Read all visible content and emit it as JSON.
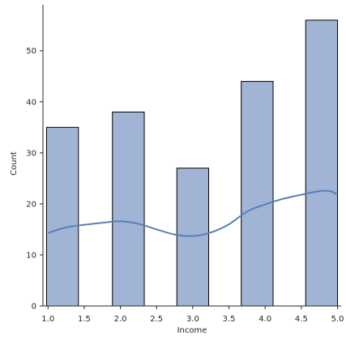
{
  "chart_data": {
    "type": "bar",
    "title": "",
    "xlabel": "Income",
    "ylabel": "Count",
    "bin_width": 0.44,
    "bins": [
      {
        "start": 0.98,
        "end": 1.42,
        "count": 35
      },
      {
        "start": 1.89,
        "end": 2.33,
        "count": 38
      },
      {
        "start": 2.78,
        "end": 3.22,
        "count": 27
      },
      {
        "start": 3.67,
        "end": 4.11,
        "count": 44
      },
      {
        "start": 4.56,
        "end": 5.0,
        "count": 56
      }
    ],
    "kde": {
      "name": "",
      "x": [
        1.0,
        1.25,
        1.5,
        1.75,
        2.0,
        2.25,
        2.5,
        2.75,
        3.0,
        3.25,
        3.5,
        3.75,
        4.0,
        4.25,
        4.5,
        4.75,
        4.9,
        5.0
      ],
      "y": [
        14.3,
        15.4,
        15.9,
        16.3,
        16.6,
        16.1,
        15.0,
        14.0,
        13.7,
        14.4,
        16.0,
        18.5,
        19.9,
        21.0,
        21.8,
        22.5,
        22.5,
        21.8
      ]
    },
    "xlim": [
      0.93,
      5.05
    ],
    "ylim": [
      0,
      59
    ],
    "xticks": [
      1.0,
      1.5,
      2.0,
      2.5,
      3.0,
      3.5,
      4.0,
      4.5,
      5.0
    ],
    "xtick_labels": [
      "1.0",
      "1.5",
      "2.0",
      "2.5",
      "3.0",
      "3.5",
      "4.0",
      "4.5",
      "5.0"
    ],
    "yticks": [
      0,
      10,
      20,
      30,
      40,
      50
    ],
    "ytick_labels": [
      "0",
      "10",
      "20",
      "30",
      "40",
      "50"
    ],
    "grid": false,
    "legend": "none",
    "colors": {
      "bar_fill": "#a2b4d6",
      "bar_edge": "#000000",
      "kde_line": "#5a7fb5",
      "axis": "#262626"
    }
  }
}
